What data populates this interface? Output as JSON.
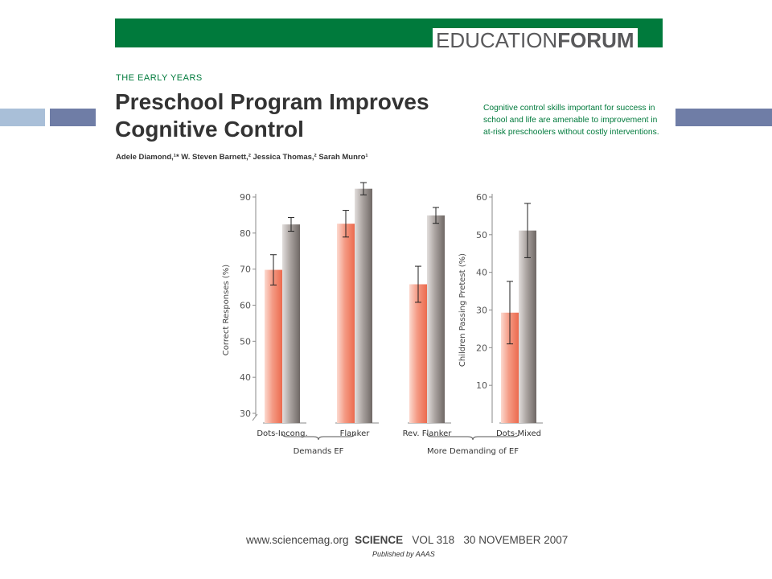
{
  "header": {
    "banner_light": "EDUCATION",
    "banner_bold": "FORUM",
    "section": "THE EARLY YEARS",
    "title_line1": "Preschool Program Improves",
    "title_line2": "Cognitive Control",
    "authors": "Adele Diamond,¹* W. Steven Barnett,² Jessica Thomas,² Sarah Munro¹",
    "summary": "Cognitive control skills important for success in school and life are amenable to improvement in at-risk preschoolers without costly interventions."
  },
  "footer": {
    "url": "www.sciencemag.org",
    "journal": "SCIENCE",
    "volume": "VOL 318",
    "date": "30 NOVEMBER 2007",
    "publisher": "Published by AAAS"
  },
  "colors": {
    "banner_green": "#007a3c",
    "slide_bar_light": "#a9bfd8",
    "slide_bar_dark": "#6f7da6",
    "bar_coral": "#f07a5f",
    "bar_gray": "#8a8380"
  },
  "chart_data": [
    {
      "type": "bar",
      "title": "",
      "xlabel": "",
      "ylabel": "Correct Responses (%)",
      "ylim": [
        30,
        90
      ],
      "axis_break": true,
      "yticks": [
        30,
        40,
        50,
        60,
        70,
        80,
        90
      ],
      "categories": [
        "Dots-Incong.",
        "Flanker",
        "Rev. Flanker"
      ],
      "series": [
        {
          "values": [
            69.8,
            82.6,
            65.8
          ],
          "error": [
            4.2,
            3.7,
            5.0
          ],
          "color": "#f07a5f"
        },
        {
          "values": [
            82.4,
            92.3,
            84.9
          ],
          "error": [
            1.9,
            1.7,
            2.2
          ],
          "color": "#8a8380"
        }
      ]
    },
    {
      "type": "bar",
      "title": "",
      "xlabel": "",
      "ylabel": "Children Passing Pretest (%)",
      "ylim": [
        0,
        60
      ],
      "yticks": [
        10,
        20,
        30,
        40,
        50,
        60
      ],
      "categories": [
        "Dots-Mixed"
      ],
      "series": [
        {
          "values": [
            29.3
          ],
          "error": [
            8.3
          ],
          "color": "#f07a5f"
        },
        {
          "values": [
            51.1
          ],
          "error": [
            7.2
          ],
          "color": "#8a8380"
        }
      ]
    }
  ],
  "chart_groups": [
    {
      "label": "Demands EF",
      "from": "Dots-Incong.",
      "to": "Flanker"
    },
    {
      "label": "More Demanding of EF",
      "from": "Rev. Flanker",
      "to": "Dots-Mixed"
    }
  ]
}
